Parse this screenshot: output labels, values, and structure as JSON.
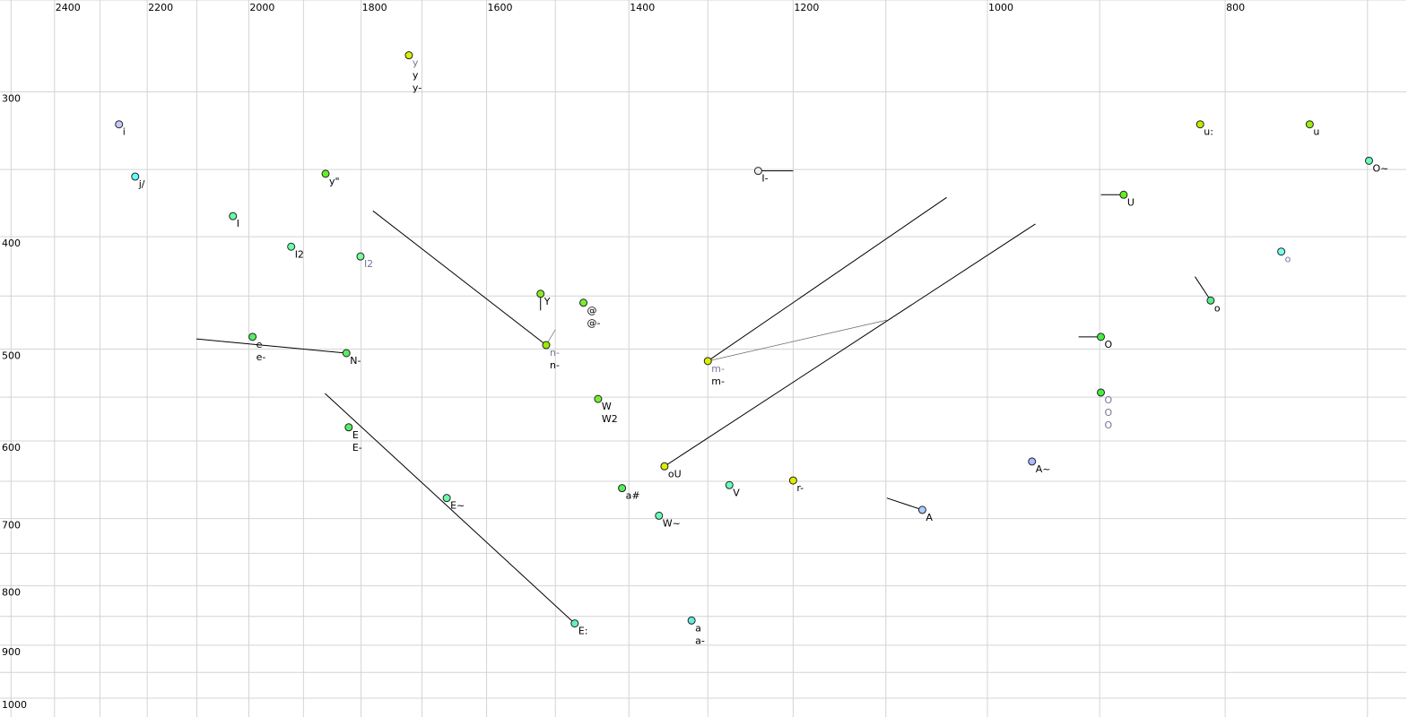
{
  "chart_data": {
    "type": "scatter",
    "title": "",
    "xlabel": "",
    "ylabel": "",
    "x_axis": {
      "quantity": "F2",
      "scale": "log",
      "reversed": true,
      "range": [
        2526,
        675
      ],
      "position": "top",
      "grid_step": 100,
      "ticks": [
        2400,
        2200,
        2000,
        1800,
        1600,
        1400,
        1200,
        1000,
        800
      ]
    },
    "y_axis": {
      "quantity": "F1",
      "scale": "log",
      "reversed": false,
      "range": [
        250,
        1038
      ],
      "position": "left",
      "grid_step": 50,
      "ticks": [
        300,
        400,
        500,
        600,
        700,
        800,
        900,
        1000
      ]
    },
    "grid": true,
    "points": [
      {
        "f2": 2259,
        "f1": 320,
        "labels": [
          "i"
        ],
        "color": "#c8c8ff"
      },
      {
        "f2": 2225,
        "f1": 355,
        "labels": [
          "j/"
        ],
        "color": "#66ffff"
      },
      {
        "f2": 2030,
        "f1": 384,
        "labels": [
          "I"
        ],
        "color": "#66ffaa"
      },
      {
        "f2": 1922,
        "f1": 408,
        "labels": [
          "I2"
        ],
        "color": "#66ffaa"
      },
      {
        "f2": 1801,
        "f1": 416,
        "labels": [
          "I2"
        ],
        "color": "#77ff99",
        "muted": [
          true
        ]
      },
      {
        "f2": 1861,
        "f1": 353,
        "labels": [
          "y\""
        ],
        "color": "#66ee22"
      },
      {
        "f2": 1721,
        "f1": 279,
        "labels": [
          "y",
          "y",
          "y-"
        ],
        "color": "#ddee00",
        "muted": [
          true,
          false,
          false
        ]
      },
      {
        "f2": 1993,
        "f1": 488,
        "labels": [
          "e",
          "e-"
        ],
        "color": "#55ee66"
      },
      {
        "f2": 1825,
        "f1": 504,
        "labels": [
          "N-"
        ],
        "color": "#55ee66"
      },
      {
        "f2": 1521,
        "f1": 448,
        "labels": [
          "Y"
        ],
        "color": "#88ee22"
      },
      {
        "f2": 1461,
        "f1": 456,
        "labels": [
          "@",
          "@-"
        ],
        "color": "#77ee33"
      },
      {
        "f2": 1513,
        "f1": 496,
        "labels": [
          "n-",
          "n-"
        ],
        "color": "#99ee00",
        "muted": [
          true,
          false
        ]
      },
      {
        "f2": 1300,
        "f1": 512,
        "labels": [
          "m-",
          "m-"
        ],
        "color": "#ddee00",
        "muted": [
          true,
          false
        ]
      },
      {
        "f2": 1441,
        "f1": 552,
        "labels": [
          "W",
          "W2"
        ],
        "color": "#77ee33"
      },
      {
        "f2": 1821,
        "f1": 584,
        "labels": [
          "E",
          "E-"
        ],
        "color": "#55ee66"
      },
      {
        "f2": 1661,
        "f1": 672,
        "labels": [
          "E~"
        ],
        "color": "#66ffaa"
      },
      {
        "f2": 1473,
        "f1": 862,
        "labels": [
          "E:"
        ],
        "color": "#66eecc"
      },
      {
        "f2": 1320,
        "f1": 857,
        "labels": [
          "a",
          "a-"
        ],
        "color": "#66eedd"
      },
      {
        "f2": 1354,
        "f1": 631,
        "labels": [
          "oU"
        ],
        "color": "#ddee00"
      },
      {
        "f2": 1409,
        "f1": 659,
        "labels": [
          "a#"
        ],
        "color": "#55ee55"
      },
      {
        "f2": 1361,
        "f1": 696,
        "labels": [
          "W~"
        ],
        "color": "#66ffbb"
      },
      {
        "f2": 1274,
        "f1": 655,
        "labels": [
          "V"
        ],
        "color": "#66ffbb"
      },
      {
        "f2": 1200,
        "f1": 649,
        "labels": [
          "r-"
        ],
        "color": "#ddee00"
      },
      {
        "f2": 1240,
        "f1": 351,
        "labels": [
          "I-"
        ],
        "color": "#eeeeee"
      },
      {
        "f2": 1063,
        "f1": 688,
        "labels": [
          "A"
        ],
        "color": "#aaccff"
      },
      {
        "f2": 959,
        "f1": 625,
        "labels": [
          "A~"
        ],
        "color": "#aabbff"
      },
      {
        "f2": 880,
        "f1": 368,
        "labels": [
          "U"
        ],
        "color": "#66ee22"
      },
      {
        "f2": 819,
        "f1": 320,
        "labels": [
          "u:"
        ],
        "color": "#bbee00"
      },
      {
        "f2": 739,
        "f1": 320,
        "labels": [
          "u"
        ],
        "color": "#99ee11"
      },
      {
        "f2": 699,
        "f1": 344,
        "labels": [
          "O~"
        ],
        "color": "#66ffbb"
      },
      {
        "f2": 759,
        "f1": 412,
        "labels": [
          "o"
        ],
        "color": "#77ffee",
        "muted": [
          true
        ]
      },
      {
        "f2": 811,
        "f1": 454,
        "labels": [
          "o"
        ],
        "color": "#55ee88"
      },
      {
        "f2": 899,
        "f1": 488,
        "labels": [
          "O"
        ],
        "color": "#44ee44"
      },
      {
        "f2": 899,
        "f1": 545,
        "labels": [
          "O",
          "O",
          "O"
        ],
        "color": "#44ee44",
        "muted": [
          true,
          true,
          true
        ]
      }
    ],
    "trajectories": [
      {
        "from": [
          1780,
          380
        ],
        "to": [
          1513,
          496
        ]
      },
      {
        "from": [
          2101,
          490
        ],
        "to": [
          1825,
          504
        ]
      },
      {
        "from": [
          1862,
          546
        ],
        "to": [
          1473,
          862
        ]
      },
      {
        "from": [
          1039,
          370
        ],
        "to": [
          1300,
          512
        ]
      },
      {
        "from": [
          1099,
          472
        ],
        "to": [
          1300,
          512
        ],
        "muted": true
      },
      {
        "from": [
          956,
          390
        ],
        "to": [
          1354,
          631
        ]
      },
      {
        "from": [
          1099,
          672
        ],
        "to": [
          1063,
          688
        ]
      },
      {
        "from": [
          899,
          368
        ],
        "to": [
          880,
          368
        ]
      },
      {
        "from": [
          918,
          488
        ],
        "to": [
          899,
          488
        ]
      },
      {
        "from": [
          823,
          433
        ],
        "to": [
          811,
          454
        ]
      },
      {
        "from": [
          1500,
          481
        ],
        "to": [
          1513,
          496
        ],
        "muted": true
      },
      {
        "from": [
          1521,
          448
        ],
        "to": [
          1521,
          463
        ]
      },
      {
        "from": [
          1240,
          351
        ],
        "to": [
          1200,
          351
        ]
      }
    ],
    "colors": {
      "grid": "#d4d4d4",
      "line": "#000000",
      "muted_label": "#777799",
      "label": "#000000"
    }
  }
}
